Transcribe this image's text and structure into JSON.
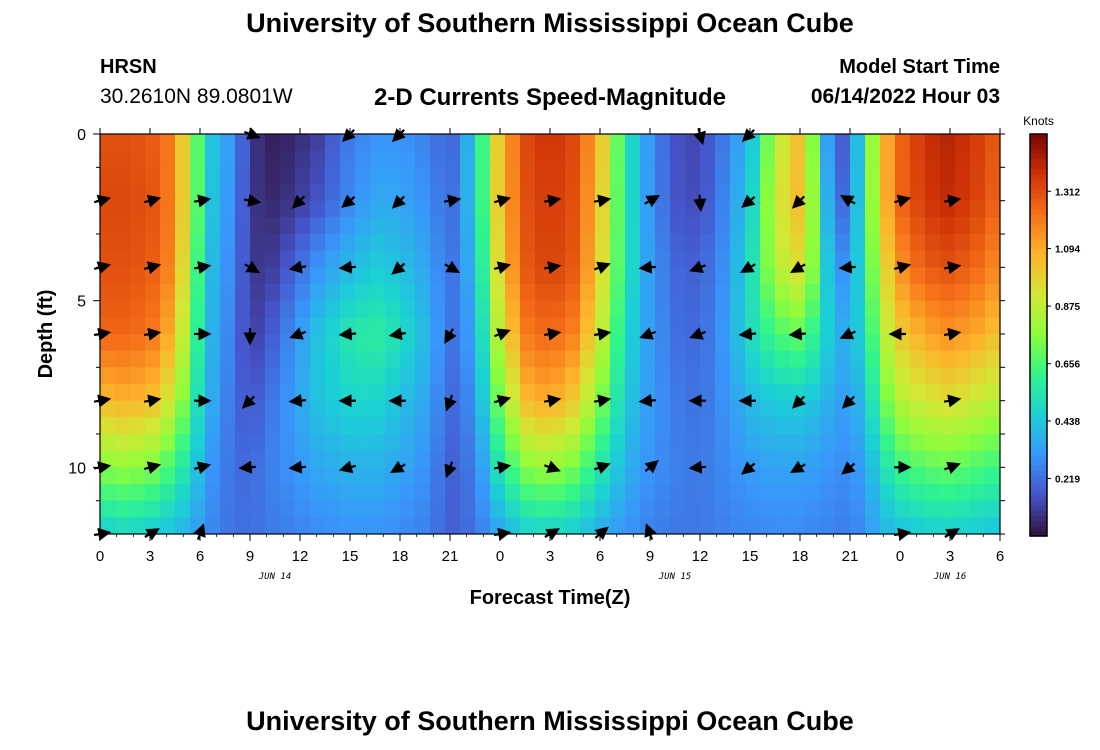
{
  "header": {
    "title": "University of Southern Mississippi Ocean Cube",
    "station": "HRSN",
    "coords": "30.2610N  89.0801W",
    "subtitle": "2-D Currents Speed-Magnitude",
    "model_start_label": "Model Start Time",
    "model_start_value": "06/14/2022 Hour 03"
  },
  "footer": {
    "title": "University of Southern Mississippi Ocean Cube"
  },
  "chart_data": {
    "type": "heatmap",
    "title": "2-D Currents Speed-Magnitude",
    "xlabel": "Forecast Time(Z)",
    "ylabel": "Depth (ft)",
    "x_range_hours": [
      0,
      54
    ],
    "y_range_ft": [
      0,
      12
    ],
    "y_inverted": true,
    "x_tick_labels": [
      "0",
      "3",
      "6",
      "9",
      "12",
      "15",
      "18",
      "21",
      "0",
      "3",
      "6",
      "9",
      "12",
      "15",
      "18",
      "21",
      "0",
      "3",
      "6"
    ],
    "x_tick_hours": [
      0,
      3,
      6,
      9,
      12,
      15,
      18,
      21,
      24,
      27,
      30,
      33,
      36,
      39,
      42,
      45,
      48,
      51,
      54
    ],
    "y_tick_labels": [
      "0",
      "5",
      "10"
    ],
    "y_tick_values": [
      0,
      5,
      10
    ],
    "date_labels": [
      {
        "text": "JUN 14",
        "hour": 10.5
      },
      {
        "text": "JUN 15",
        "hour": 34.5
      },
      {
        "text": "JUN 16",
        "hour": 51
      }
    ],
    "colorbar": {
      "label": "Knots",
      "min": 0,
      "max": 1.53,
      "ticks": [
        "0.219",
        "0.438",
        "0.656",
        "0.875",
        "1.094",
        "1.312"
      ]
    },
    "speed_time_hours": [
      0,
      1.5,
      3,
      4.5,
      5.5,
      6.5,
      8,
      9,
      10,
      11.5,
      13,
      15,
      16.5,
      18,
      19.5,
      21,
      22.5,
      24,
      25.5,
      27,
      28.5,
      30,
      31.5,
      33,
      34.5,
      36,
      37.5,
      39,
      40.5,
      42,
      43,
      44,
      45,
      46,
      47,
      48,
      49.5,
      51,
      52.5,
      54
    ],
    "speed_depth_ft": [
      0,
      2,
      4,
      6,
      8,
      10,
      12
    ],
    "speed_knots": [
      [
        1.3,
        1.3,
        1.28,
        1.18,
        0.8,
        0.45,
        0.3,
        0.1,
        0.03,
        0.05,
        0.1,
        0.25,
        0.3,
        0.3,
        0.26,
        0.18,
        0.45,
        1.05,
        1.32,
        1.38,
        1.32,
        1.05,
        0.55,
        0.3,
        0.15,
        0.12,
        0.25,
        0.4,
        0.85,
        1.05,
        0.65,
        0.15,
        0.2,
        0.65,
        1.05,
        1.25,
        1.38,
        1.42,
        1.36,
        1.26
      ],
      [
        1.32,
        1.32,
        1.3,
        1.18,
        0.8,
        0.45,
        0.28,
        0.1,
        0.05,
        0.08,
        0.15,
        0.28,
        0.35,
        0.35,
        0.3,
        0.2,
        0.45,
        1.05,
        1.3,
        1.36,
        1.3,
        1.02,
        0.55,
        0.3,
        0.16,
        0.13,
        0.28,
        0.45,
        0.9,
        1.05,
        0.7,
        0.2,
        0.22,
        0.65,
        1.05,
        1.25,
        1.36,
        1.4,
        1.34,
        1.24
      ],
      [
        1.3,
        1.3,
        1.28,
        1.15,
        0.75,
        0.42,
        0.26,
        0.1,
        0.08,
        0.18,
        0.3,
        0.4,
        0.45,
        0.42,
        0.35,
        0.22,
        0.4,
        1.0,
        1.28,
        1.34,
        1.28,
        0.98,
        0.55,
        0.32,
        0.2,
        0.18,
        0.3,
        0.5,
        0.85,
        0.95,
        0.7,
        0.3,
        0.3,
        0.62,
        0.95,
        1.15,
        1.28,
        1.3,
        1.25,
        1.15
      ],
      [
        1.25,
        1.25,
        1.22,
        1.05,
        0.7,
        0.4,
        0.24,
        0.1,
        0.15,
        0.28,
        0.42,
        0.55,
        0.58,
        0.52,
        0.4,
        0.22,
        0.35,
        0.9,
        1.2,
        1.25,
        1.18,
        0.9,
        0.5,
        0.32,
        0.22,
        0.2,
        0.32,
        0.5,
        0.65,
        0.7,
        0.58,
        0.4,
        0.35,
        0.55,
        0.85,
        1.0,
        1.1,
        1.15,
        1.1,
        1.02
      ],
      [
        1.05,
        1.08,
        1.05,
        0.88,
        0.6,
        0.38,
        0.22,
        0.15,
        0.22,
        0.32,
        0.42,
        0.48,
        0.48,
        0.42,
        0.35,
        0.2,
        0.3,
        0.75,
        1.05,
        1.1,
        1.0,
        0.75,
        0.45,
        0.32,
        0.25,
        0.22,
        0.3,
        0.4,
        0.45,
        0.45,
        0.42,
        0.35,
        0.32,
        0.45,
        0.7,
        0.85,
        0.92,
        0.95,
        0.9,
        0.85
      ],
      [
        0.75,
        0.78,
        0.75,
        0.62,
        0.48,
        0.32,
        0.22,
        0.2,
        0.25,
        0.3,
        0.35,
        0.38,
        0.38,
        0.35,
        0.3,
        0.18,
        0.25,
        0.55,
        0.75,
        0.8,
        0.72,
        0.55,
        0.38,
        0.3,
        0.26,
        0.24,
        0.28,
        0.32,
        0.34,
        0.34,
        0.32,
        0.3,
        0.28,
        0.36,
        0.52,
        0.62,
        0.68,
        0.7,
        0.66,
        0.62
      ],
      [
        0.45,
        0.48,
        0.45,
        0.4,
        0.35,
        0.28,
        0.22,
        0.22,
        0.24,
        0.26,
        0.28,
        0.3,
        0.3,
        0.28,
        0.26,
        0.18,
        0.22,
        0.35,
        0.45,
        0.48,
        0.44,
        0.36,
        0.3,
        0.26,
        0.24,
        0.24,
        0.26,
        0.27,
        0.28,
        0.28,
        0.27,
        0.26,
        0.25,
        0.3,
        0.38,
        0.42,
        0.45,
        0.46,
        0.44,
        0.42
      ]
    ],
    "vectors_time_hours": [
      0,
      3,
      6,
      9,
      12,
      15,
      18,
      21,
      24,
      27,
      30,
      33,
      36,
      39,
      42,
      45,
      48,
      51
    ],
    "vectors_depth_ft": [
      0,
      2,
      4,
      6,
      8,
      10,
      12
    ],
    "vectors_direction_deg": [
      [
        null,
        null,
        null,
        110,
        null,
        225,
        225,
        null,
        null,
        null,
        null,
        null,
        165,
        225,
        null,
        null,
        null,
        null
      ],
      [
        75,
        75,
        80,
        100,
        225,
        230,
        225,
        80,
        75,
        80,
        80,
        60,
        175,
        230,
        225,
        300,
        75,
        80
      ],
      [
        75,
        75,
        80,
        120,
        260,
        265,
        230,
        120,
        75,
        80,
        70,
        265,
        250,
        240,
        240,
        265,
        75,
        80
      ],
      [
        80,
        80,
        90,
        180,
        250,
        265,
        260,
        210,
        70,
        80,
        80,
        250,
        250,
        265,
        265,
        245,
        270,
        80
      ],
      [
        80,
        80,
        90,
        225,
        265,
        270,
        270,
        200,
        75,
        80,
        80,
        265,
        270,
        270,
        225,
        225,
        null,
        80
      ],
      [
        80,
        75,
        75,
        265,
        265,
        255,
        240,
        200,
        80,
        110,
        70,
        50,
        265,
        230,
        240,
        230,
        90,
        70
      ],
      [
        80,
        60,
        20,
        null,
        null,
        null,
        null,
        null,
        80,
        60,
        50,
        340,
        null,
        null,
        null,
        null,
        80,
        60
      ]
    ]
  }
}
